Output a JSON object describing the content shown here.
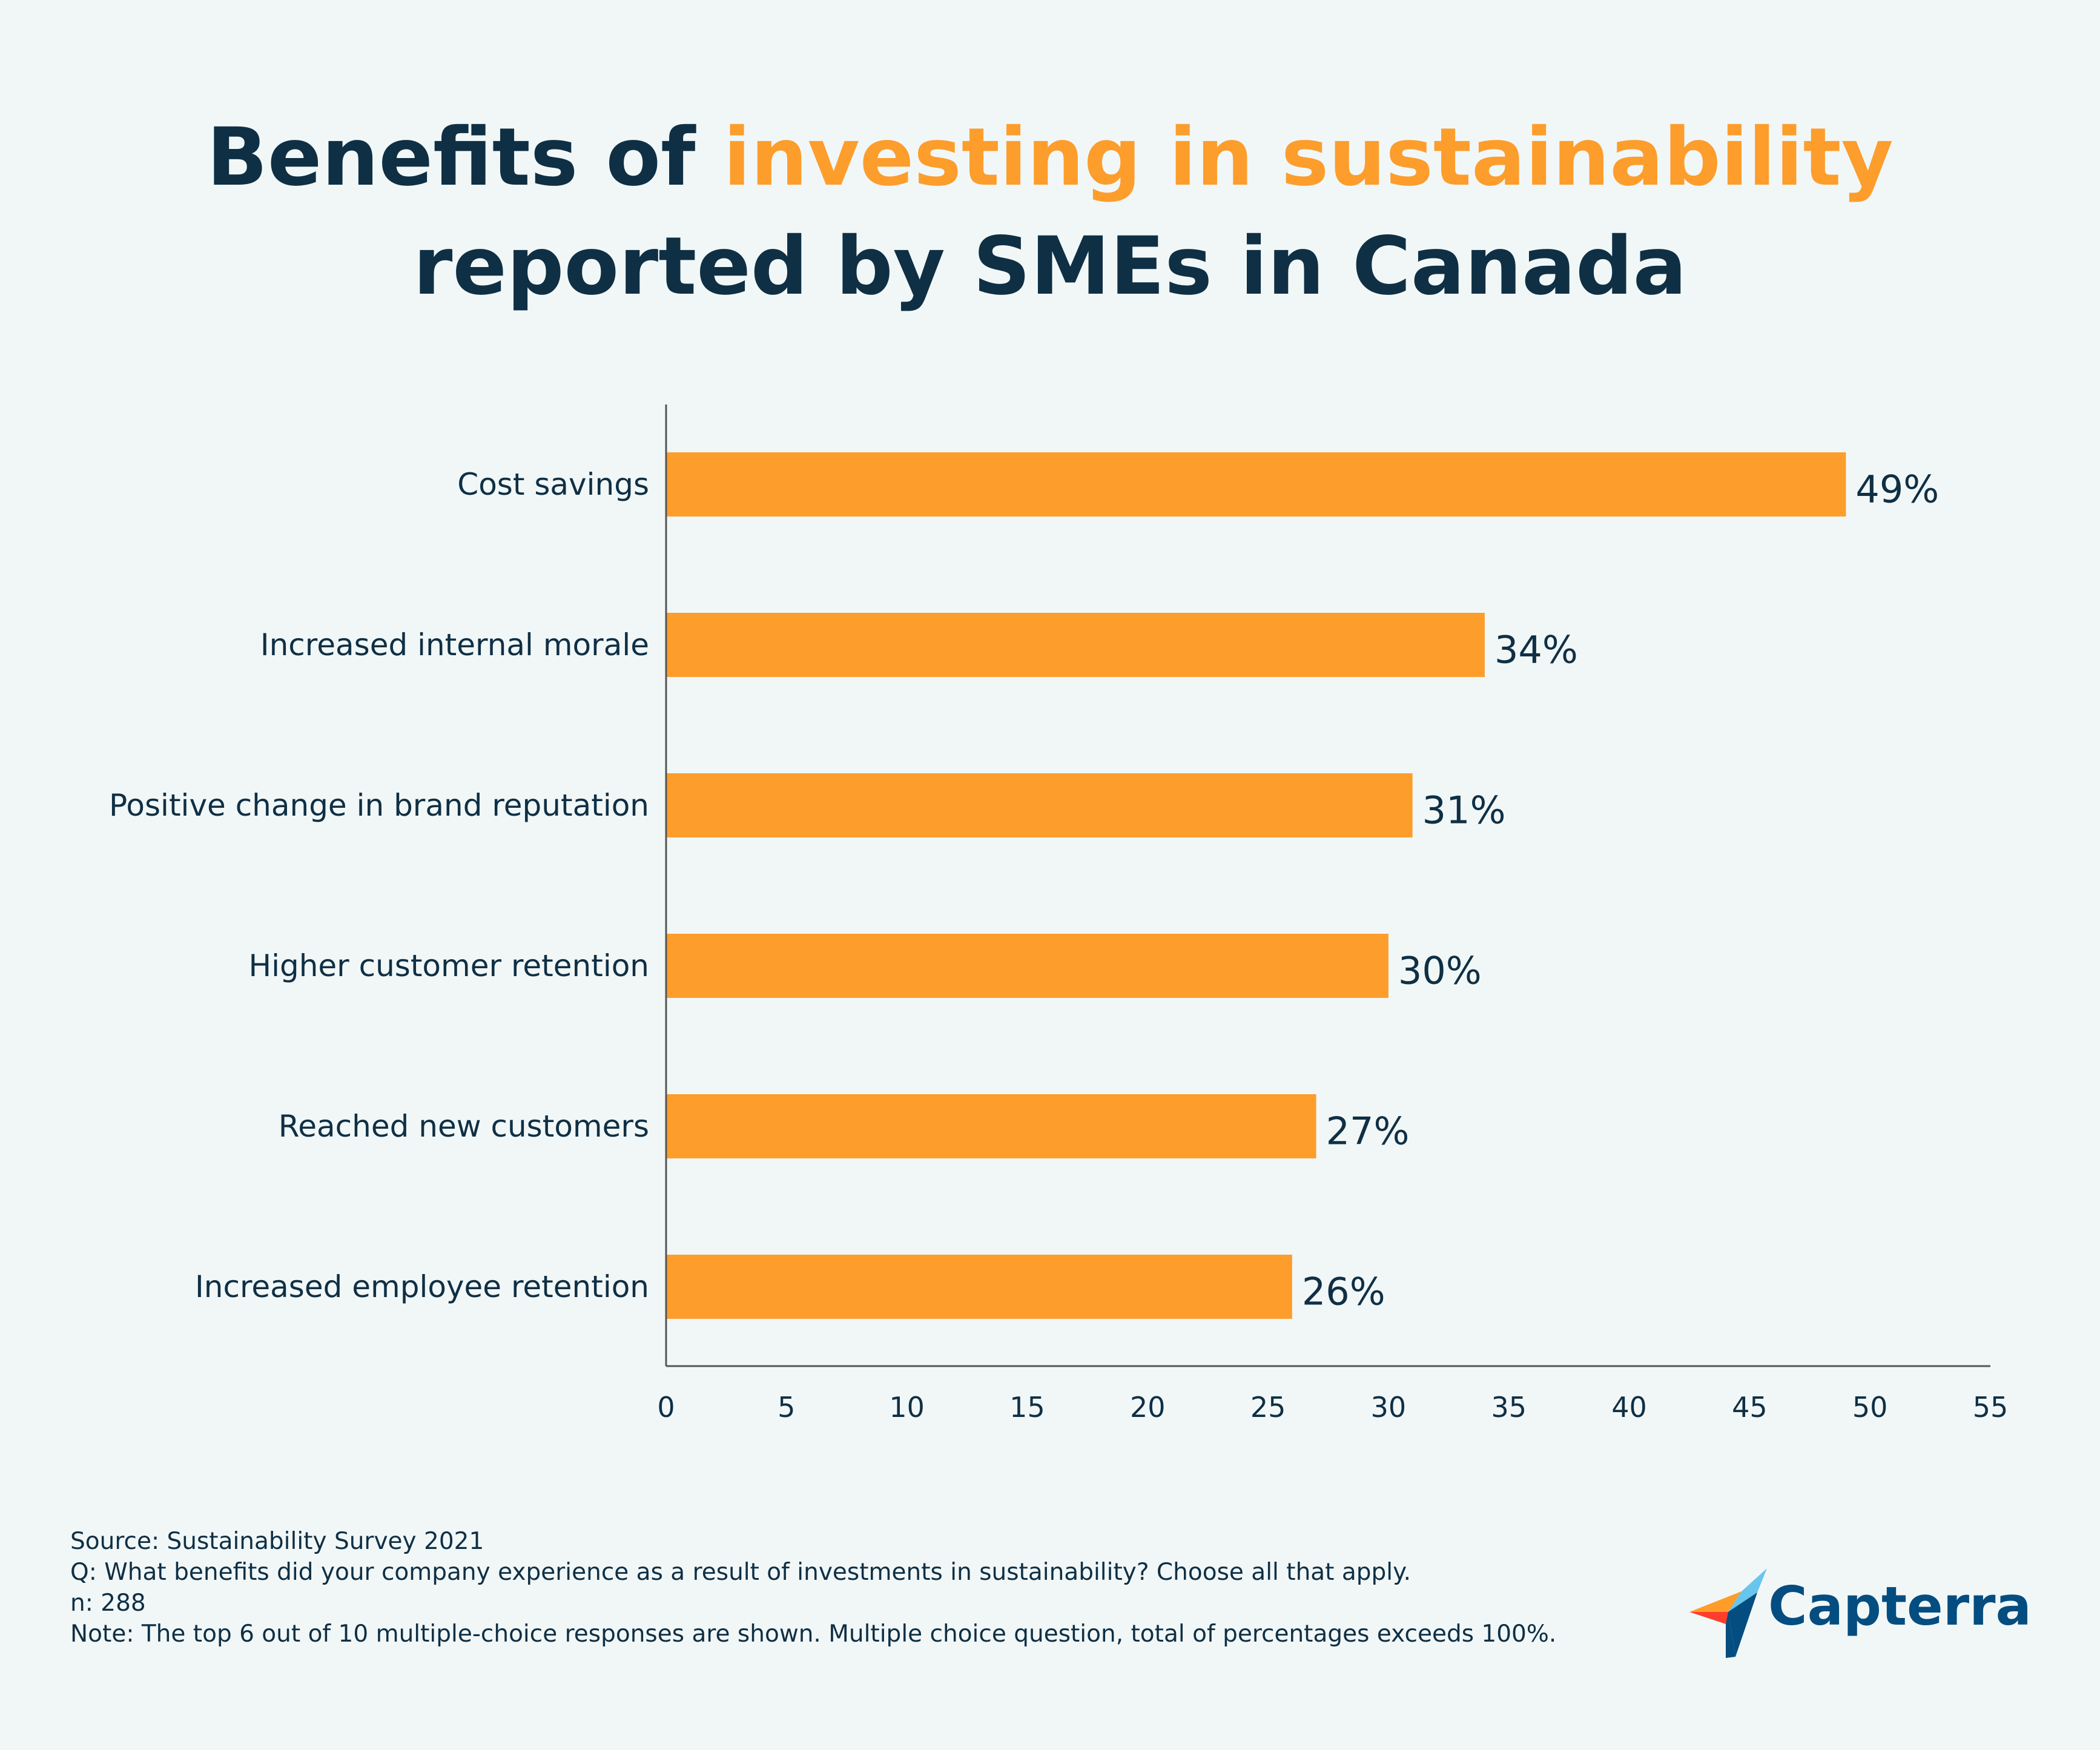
{
  "title": {
    "part1": "Benefits of ",
    "accent": "investing in sustainability",
    "part2": "reported by SMEs in Canada"
  },
  "colors": {
    "bar": "#fd9d2c",
    "text": "#0f2f44",
    "background": "#f1f7f7",
    "axis": "#555555"
  },
  "chart_data": {
    "type": "bar",
    "orientation": "horizontal",
    "categories": [
      "Cost savings",
      "Increased internal morale",
      "Positive change in brand reputation",
      "Higher customer retention",
      "Reached new customers",
      "Increased employee retention"
    ],
    "values": [
      49,
      34,
      31,
      30,
      27,
      26
    ],
    "value_labels": [
      "49%",
      "34%",
      "31%",
      "30%",
      "27%",
      "26%"
    ],
    "xlim": [
      0,
      55
    ],
    "xticks": [
      0,
      5,
      10,
      15,
      20,
      25,
      30,
      35,
      40,
      45,
      50,
      55
    ],
    "xlabel": "",
    "ylabel": "",
    "grid": false
  },
  "footer": {
    "source": "Source: Sustainability Survey 2021",
    "question": "Q: What benefits did your company experience as a result of investments in sustainability? Choose all that apply.",
    "n": "n: 288",
    "note": "Note: The top 6 out of 10 multiple-choice responses are shown. Multiple choice question, total of percentages exceeds 100%."
  },
  "logo": {
    "text": "Capterra",
    "icon": "capterra-arrow-icon"
  }
}
